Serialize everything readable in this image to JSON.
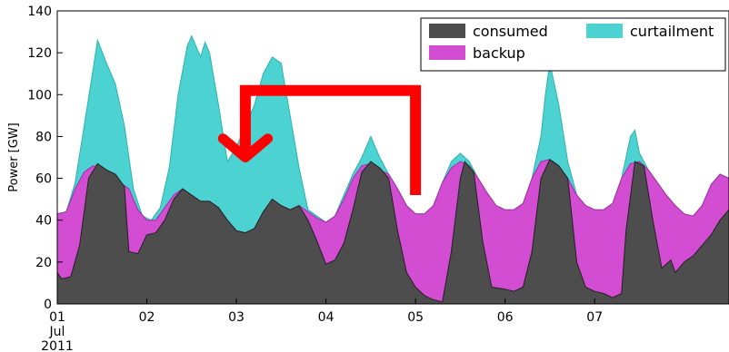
{
  "chart_data": {
    "type": "area",
    "ylabel": "Power [GW]",
    "ylim": [
      0,
      140
    ],
    "yticks": [
      0,
      20,
      40,
      60,
      80,
      100,
      120,
      140
    ],
    "xlim": [
      0,
      7.5
    ],
    "xticks": [
      {
        "x": 0,
        "label": "01",
        "sub1": "Jul",
        "sub2": "2011"
      },
      {
        "x": 1,
        "label": "02"
      },
      {
        "x": 2,
        "label": "03"
      },
      {
        "x": 3,
        "label": "04"
      },
      {
        "x": 4,
        "label": "05"
      },
      {
        "x": 5,
        "label": "06"
      },
      {
        "x": 6,
        "label": "07"
      }
    ],
    "legend": {
      "placement": "top-right",
      "entries": [
        {
          "label": "consumed",
          "color": "#4d4d4d"
        },
        {
          "label": "curtailment",
          "color": "#4dd2d2"
        },
        {
          "label": "backup",
          "color": "#d24dd2"
        }
      ]
    },
    "colors": {
      "consumed": "#4d4d4d",
      "backup": "#d24dd2",
      "curtailment": "#4dd2d2",
      "arrow": "#ff0000"
    },
    "series": [
      {
        "name": "consumed",
        "points": [
          [
            0,
            15
          ],
          [
            0.05,
            12
          ],
          [
            0.15,
            13
          ],
          [
            0.25,
            28
          ],
          [
            0.35,
            60
          ],
          [
            0.45,
            67
          ],
          [
            0.55,
            64
          ],
          [
            0.65,
            62
          ],
          [
            0.75,
            56
          ],
          [
            0.8,
            25
          ],
          [
            0.9,
            24
          ],
          [
            1.0,
            33
          ],
          [
            1.1,
            34
          ],
          [
            1.2,
            40
          ],
          [
            1.3,
            50
          ],
          [
            1.4,
            55
          ],
          [
            1.5,
            52
          ],
          [
            1.6,
            49
          ],
          [
            1.7,
            49
          ],
          [
            1.8,
            46
          ],
          [
            1.9,
            40
          ],
          [
            2.0,
            35
          ],
          [
            2.1,
            34
          ],
          [
            2.2,
            36
          ],
          [
            2.3,
            44
          ],
          [
            2.4,
            50
          ],
          [
            2.5,
            47
          ],
          [
            2.6,
            45
          ],
          [
            2.7,
            47
          ],
          [
            2.8,
            40
          ],
          [
            2.9,
            30
          ],
          [
            3.0,
            19
          ],
          [
            3.1,
            21
          ],
          [
            3.2,
            29
          ],
          [
            3.3,
            45
          ],
          [
            3.4,
            63
          ],
          [
            3.5,
            68
          ],
          [
            3.6,
            65
          ],
          [
            3.7,
            60
          ],
          [
            3.8,
            35
          ],
          [
            3.9,
            15
          ],
          [
            4.0,
            8
          ],
          [
            4.1,
            4
          ],
          [
            4.2,
            2
          ],
          [
            4.3,
            1
          ],
          [
            4.4,
            25
          ],
          [
            4.5,
            60
          ],
          [
            4.55,
            68
          ],
          [
            4.65,
            63
          ],
          [
            4.75,
            30
          ],
          [
            4.85,
            8
          ],
          [
            5.0,
            7
          ],
          [
            5.1,
            6
          ],
          [
            5.2,
            8
          ],
          [
            5.3,
            25
          ],
          [
            5.4,
            60
          ],
          [
            5.5,
            69
          ],
          [
            5.6,
            66
          ],
          [
            5.7,
            60
          ],
          [
            5.8,
            20
          ],
          [
            5.9,
            8
          ],
          [
            6.0,
            6
          ],
          [
            6.1,
            5
          ],
          [
            6.2,
            3
          ],
          [
            6.3,
            5
          ],
          [
            6.35,
            35
          ],
          [
            6.45,
            68
          ],
          [
            6.55,
            66
          ],
          [
            6.65,
            40
          ],
          [
            6.75,
            17
          ],
          [
            6.85,
            21
          ],
          [
            6.9,
            15
          ],
          [
            7.0,
            20
          ],
          [
            7.1,
            23
          ],
          [
            7.2,
            28
          ],
          [
            7.3,
            33
          ],
          [
            7.4,
            40
          ],
          [
            7.5,
            45
          ]
        ]
      },
      {
        "name": "backup",
        "points": [
          [
            0,
            43
          ],
          [
            0.1,
            44
          ],
          [
            0.2,
            55
          ],
          [
            0.3,
            63
          ],
          [
            0.4,
            66
          ],
          [
            0.5,
            65
          ],
          [
            0.6,
            62
          ],
          [
            0.7,
            58
          ],
          [
            0.8,
            55
          ],
          [
            0.9,
            45
          ],
          [
            1.0,
            40
          ],
          [
            1.1,
            40
          ],
          [
            1.2,
            46
          ],
          [
            1.3,
            52
          ],
          [
            1.4,
            55
          ],
          [
            1.5,
            52
          ],
          [
            1.6,
            49
          ],
          [
            1.7,
            49
          ],
          [
            1.8,
            46
          ],
          [
            1.9,
            40
          ],
          [
            2.0,
            35
          ],
          [
            2.1,
            34
          ],
          [
            2.2,
            36
          ],
          [
            2.3,
            44
          ],
          [
            2.4,
            50
          ],
          [
            2.5,
            47
          ],
          [
            2.6,
            45
          ],
          [
            2.7,
            47
          ],
          [
            2.8,
            44
          ],
          [
            2.9,
            41
          ],
          [
            3.0,
            39
          ],
          [
            3.1,
            42
          ],
          [
            3.2,
            50
          ],
          [
            3.3,
            60
          ],
          [
            3.4,
            66
          ],
          [
            3.5,
            67
          ],
          [
            3.6,
            64
          ],
          [
            3.7,
            62
          ],
          [
            3.8,
            55
          ],
          [
            3.9,
            47
          ],
          [
            4.0,
            43
          ],
          [
            4.1,
            43
          ],
          [
            4.2,
            47
          ],
          [
            4.3,
            58
          ],
          [
            4.4,
            65
          ],
          [
            4.5,
            68
          ],
          [
            4.6,
            66
          ],
          [
            4.7,
            60
          ],
          [
            4.8,
            53
          ],
          [
            4.9,
            47
          ],
          [
            5.0,
            45
          ],
          [
            5.1,
            45
          ],
          [
            5.2,
            48
          ],
          [
            5.3,
            60
          ],
          [
            5.4,
            68
          ],
          [
            5.5,
            69
          ],
          [
            5.6,
            66
          ],
          [
            5.7,
            60
          ],
          [
            5.8,
            52
          ],
          [
            5.9,
            47
          ],
          [
            6.0,
            45
          ],
          [
            6.1,
            45
          ],
          [
            6.2,
            48
          ],
          [
            6.3,
            60
          ],
          [
            6.4,
            67
          ],
          [
            6.5,
            68
          ],
          [
            6.6,
            64
          ],
          [
            6.7,
            58
          ],
          [
            6.8,
            52
          ],
          [
            6.9,
            47
          ],
          [
            7.0,
            43
          ],
          [
            7.1,
            42
          ],
          [
            7.2,
            47
          ],
          [
            7.3,
            57
          ],
          [
            7.4,
            62
          ],
          [
            7.5,
            60
          ]
        ]
      },
      {
        "name": "curtailment",
        "points": [
          [
            0,
            43
          ],
          [
            0.1,
            44
          ],
          [
            0.2,
            58
          ],
          [
            0.3,
            85
          ],
          [
            0.4,
            112
          ],
          [
            0.45,
            126
          ],
          [
            0.55,
            115
          ],
          [
            0.65,
            105
          ],
          [
            0.75,
            85
          ],
          [
            0.85,
            55
          ],
          [
            0.95,
            42
          ],
          [
            1.05,
            40
          ],
          [
            1.15,
            46
          ],
          [
            1.25,
            65
          ],
          [
            1.35,
            100
          ],
          [
            1.45,
            123
          ],
          [
            1.5,
            128
          ],
          [
            1.6,
            118
          ],
          [
            1.65,
            125
          ],
          [
            1.7,
            120
          ],
          [
            1.8,
            95
          ],
          [
            1.9,
            68
          ],
          [
            2.0,
            75
          ],
          [
            2.1,
            85
          ],
          [
            2.2,
            95
          ],
          [
            2.3,
            110
          ],
          [
            2.4,
            118
          ],
          [
            2.5,
            115
          ],
          [
            2.6,
            90
          ],
          [
            2.7,
            65
          ],
          [
            2.8,
            45
          ],
          [
            2.9,
            42
          ],
          [
            3.0,
            39
          ],
          [
            3.1,
            42
          ],
          [
            3.2,
            52
          ],
          [
            3.3,
            62
          ],
          [
            3.4,
            70
          ],
          [
            3.5,
            80
          ],
          [
            3.6,
            70
          ],
          [
            3.7,
            62
          ],
          [
            3.8,
            55
          ],
          [
            3.9,
            47
          ],
          [
            4.0,
            43
          ],
          [
            4.1,
            43
          ],
          [
            4.2,
            47
          ],
          [
            4.3,
            58
          ],
          [
            4.4,
            68
          ],
          [
            4.5,
            72
          ],
          [
            4.6,
            68
          ],
          [
            4.7,
            60
          ],
          [
            4.8,
            53
          ],
          [
            4.9,
            47
          ],
          [
            5.0,
            45
          ],
          [
            5.1,
            45
          ],
          [
            5.2,
            48
          ],
          [
            5.3,
            60
          ],
          [
            5.4,
            80
          ],
          [
            5.45,
            100
          ],
          [
            5.5,
            115
          ],
          [
            5.6,
            95
          ],
          [
            5.7,
            68
          ],
          [
            5.8,
            52
          ],
          [
            5.9,
            47
          ],
          [
            6.0,
            45
          ],
          [
            6.1,
            45
          ],
          [
            6.2,
            48
          ],
          [
            6.3,
            60
          ],
          [
            6.4,
            80
          ],
          [
            6.45,
            83
          ],
          [
            6.5,
            72
          ],
          [
            6.6,
            64
          ],
          [
            6.7,
            58
          ],
          [
            6.8,
            52
          ],
          [
            6.9,
            47
          ],
          [
            7.0,
            43
          ],
          [
            7.1,
            42
          ],
          [
            7.2,
            47
          ],
          [
            7.3,
            57
          ],
          [
            7.4,
            62
          ],
          [
            7.5,
            60
          ]
        ]
      }
    ],
    "annotation": {
      "type": "red-bracket-arrow",
      "path": [
        [
          4.0,
          52
        ],
        [
          4.0,
          102
        ],
        [
          2.1,
          102
        ],
        [
          2.1,
          70
        ]
      ],
      "arrowhead": [
        [
          1.85,
          79
        ],
        [
          2.1,
          70
        ],
        [
          2.35,
          79
        ]
      ]
    }
  }
}
